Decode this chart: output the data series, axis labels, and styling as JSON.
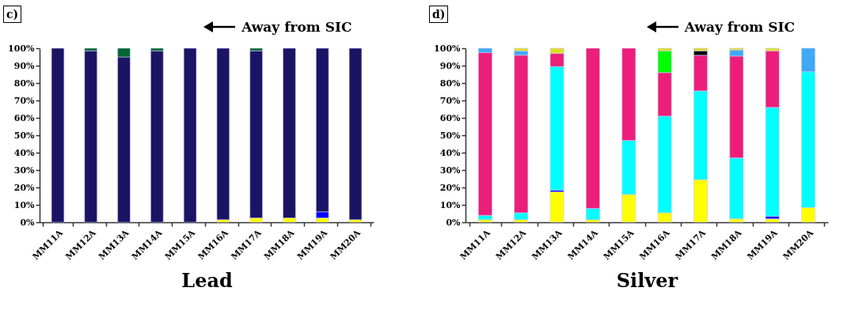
{
  "chart_data": [
    {
      "type": "bar",
      "title": "c)",
      "xlabel": "Lead",
      "annotations": [
        "Away from SIC"
      ],
      "stacked": true,
      "legend": false,
      "grid": false,
      "categories": [
        "MM11A",
        "MM12A",
        "MM13A",
        "MM14A",
        "MM15A",
        "MM16A",
        "MM17A",
        "MM18A",
        "MM19A",
        "MM20A"
      ],
      "ylim": [
        0,
        100
      ],
      "yticks": [
        {
          "value": 0,
          "label": "0%"
        },
        {
          "value": 10,
          "label": "10%"
        },
        {
          "value": 20,
          "label": "20%"
        },
        {
          "value": 30,
          "label": "30%"
        },
        {
          "value": 40,
          "label": "40%"
        },
        {
          "value": 50,
          "label": "50%"
        },
        {
          "value": 60,
          "label": "60%"
        },
        {
          "value": 70,
          "label": "70%"
        },
        {
          "value": 80,
          "label": "80%"
        },
        {
          "value": 90,
          "label": "90%"
        },
        {
          "value": 100,
          "label": "100%"
        }
      ],
      "series": [
        {
          "color": "#ffff00",
          "values": [
            null,
            null,
            null,
            null,
            null,
            1.5,
            2.5,
            2.5,
            2.5,
            1.5
          ]
        },
        {
          "color": "#0000ff",
          "values": [
            null,
            null,
            null,
            null,
            null,
            null,
            null,
            null,
            3.5,
            null
          ]
        },
        {
          "color": "#1b1464",
          "values": [
            100,
            98.5,
            95,
            98.5,
            100,
            98.5,
            96,
            97.5,
            94,
            98.5
          ]
        },
        {
          "color": "#006633",
          "values": [
            null,
            1.5,
            5,
            1.5,
            null,
            null,
            1.5,
            null,
            null,
            null
          ]
        }
      ]
    },
    {
      "type": "bar",
      "title": "d)",
      "xlabel": "Silver",
      "annotations": [
        "Away from SIC"
      ],
      "stacked": true,
      "legend": false,
      "grid": false,
      "categories": [
        "MM11A",
        "MM12A",
        "MM13A",
        "MM14A",
        "MM15A",
        "MM16A",
        "MM17A",
        "MM18A",
        "MM19A",
        "MM20A"
      ],
      "ylim": [
        0,
        100
      ],
      "yticks": [
        {
          "value": 0,
          "label": "0%"
        },
        {
          "value": 10,
          "label": "10%"
        },
        {
          "value": 20,
          "label": "20%"
        },
        {
          "value": 30,
          "label": "30%"
        },
        {
          "value": 40,
          "label": "40%"
        },
        {
          "value": 50,
          "label": "50%"
        },
        {
          "value": 60,
          "label": "60%"
        },
        {
          "value": 70,
          "label": "70%"
        },
        {
          "value": 80,
          "label": "80%"
        },
        {
          "value": 90,
          "label": "90%"
        },
        {
          "value": 100,
          "label": "100%"
        }
      ],
      "series": [
        {
          "color": "#ffff00",
          "values": [
            1.5,
            1.5,
            17.5,
            1.5,
            16,
            5.5,
            24.5,
            2,
            2,
            8.5
          ]
        },
        {
          "color": "#0000ff",
          "values": [
            null,
            null,
            1,
            null,
            null,
            null,
            null,
            null,
            1.5,
            null
          ]
        },
        {
          "color": "#00ffff",
          "values": [
            2.5,
            4,
            71,
            6.5,
            31,
            55.5,
            51,
            35,
            62.5,
            78
          ]
        },
        {
          "color": "#ec1e79",
          "values": [
            93.5,
            90.5,
            7.5,
            92,
            53,
            25,
            20.5,
            58.5,
            32.5,
            null
          ]
        },
        {
          "color": "#00ff00",
          "values": [
            null,
            null,
            null,
            null,
            null,
            12.5,
            null,
            null,
            null,
            null
          ]
        },
        {
          "color": "#000000",
          "values": [
            null,
            null,
            null,
            null,
            null,
            null,
            2.5,
            null,
            null,
            null
          ]
        },
        {
          "color": "#3fa9f5",
          "values": [
            2.5,
            2.5,
            null,
            null,
            null,
            null,
            null,
            3.5,
            null,
            13.5
          ]
        },
        {
          "color": "#dede2a",
          "values": [
            null,
            1.5,
            3,
            null,
            null,
            1.5,
            1.5,
            1,
            1.5,
            null
          ]
        }
      ]
    }
  ]
}
